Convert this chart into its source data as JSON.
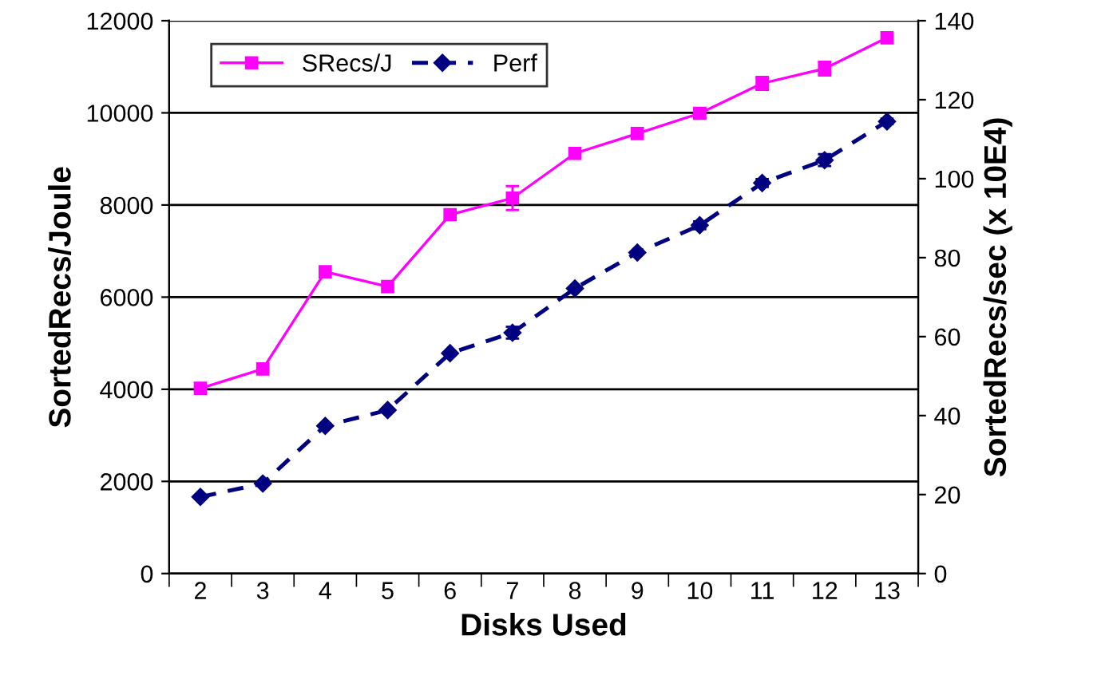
{
  "chart_data": {
    "type": "line",
    "xlabel": "Disks Used",
    "ylabel": "SortedRecs/Joule",
    "y2label": "SortedRecs/sec (x 10E4)",
    "categories": [
      "2",
      "3",
      "4",
      "5",
      "6",
      "7",
      "8",
      "9",
      "10",
      "11",
      "12",
      "13"
    ],
    "series": [
      {
        "name": "SRecs/J",
        "color": "#ff00ff",
        "marker": "square",
        "line_style": "solid",
        "values": [
          4020,
          4440,
          6550,
          6230,
          7790,
          8150,
          9120,
          9550,
          9990,
          10640,
          10960,
          11630
        ],
        "errors": [
          null,
          null,
          null,
          null,
          null,
          260,
          null,
          null,
          100,
          140,
          150,
          null
        ]
      },
      {
        "name": "Perf",
        "color": "#000080",
        "marker": "diamond",
        "line_style": "dashed",
        "axis": "y2",
        "values": [
          19.4,
          22.8,
          37.4,
          41.4,
          55.8,
          61.0,
          72.2,
          81.3,
          88.2,
          98.9,
          104.7,
          114.5
        ],
        "errors": [
          null,
          null,
          null,
          null,
          null,
          1.5,
          null,
          null,
          1.0,
          1.0,
          1.5,
          0.7
        ]
      }
    ],
    "ylim": [
      0,
      12000
    ],
    "yticks": [
      0,
      2000,
      4000,
      6000,
      8000,
      10000,
      12000
    ],
    "y2lim": [
      0,
      140
    ],
    "y2ticks": [
      0,
      20,
      40,
      60,
      80,
      100,
      120,
      140
    ],
    "grid": "y",
    "legend": "top left"
  }
}
